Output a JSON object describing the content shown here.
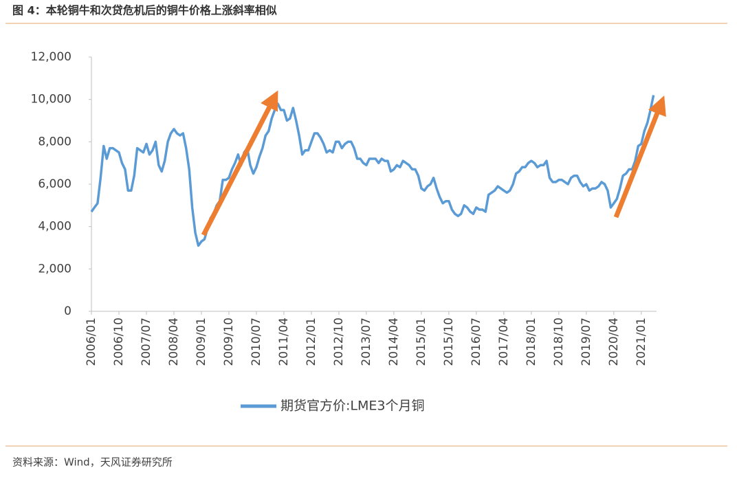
{
  "chart_data": {
    "type": "line",
    "title": "图 4：本轮铜牛和次贷危机后的铜牛价格上涨斜率相似",
    "x": [
      "2006/01",
      "2006/02",
      "2006/03",
      "2006/04",
      "2006/05",
      "2006/06",
      "2006/07",
      "2006/08",
      "2006/09",
      "2006/10",
      "2006/11",
      "2006/12",
      "2007/01",
      "2007/02",
      "2007/03",
      "2007/04",
      "2007/05",
      "2007/06",
      "2007/07",
      "2007/08",
      "2007/09",
      "2007/10",
      "2007/11",
      "2007/12",
      "2008/01",
      "2008/02",
      "2008/03",
      "2008/04",
      "2008/05",
      "2008/06",
      "2008/07",
      "2008/08",
      "2008/09",
      "2008/10",
      "2008/11",
      "2008/12",
      "2009/01",
      "2009/02",
      "2009/03",
      "2009/04",
      "2009/05",
      "2009/06",
      "2009/07",
      "2009/08",
      "2009/09",
      "2009/10",
      "2009/11",
      "2009/12",
      "2010/01",
      "2010/02",
      "2010/03",
      "2010/04",
      "2010/05",
      "2010/06",
      "2010/07",
      "2010/08",
      "2010/09",
      "2010/10",
      "2010/11",
      "2010/12",
      "2011/01",
      "2011/02",
      "2011/03",
      "2011/04",
      "2011/05",
      "2011/06",
      "2011/07",
      "2011/08",
      "2011/09",
      "2011/10",
      "2011/11",
      "2011/12",
      "2012/01",
      "2012/02",
      "2012/03",
      "2012/04",
      "2012/05",
      "2012/06",
      "2012/07",
      "2012/08",
      "2012/09",
      "2012/10",
      "2012/11",
      "2012/12",
      "2013/01",
      "2013/02",
      "2013/03",
      "2013/04",
      "2013/05",
      "2013/06",
      "2013/07",
      "2013/08",
      "2013/09",
      "2013/10",
      "2013/11",
      "2013/12",
      "2014/01",
      "2014/02",
      "2014/03",
      "2014/04",
      "2014/05",
      "2014/06",
      "2014/07",
      "2014/08",
      "2014/09",
      "2014/10",
      "2014/11",
      "2014/12",
      "2015/01",
      "2015/02",
      "2015/03",
      "2015/04",
      "2015/05",
      "2015/06",
      "2015/07",
      "2015/08",
      "2015/09",
      "2015/10",
      "2015/11",
      "2015/12",
      "2016/01",
      "2016/02",
      "2016/03",
      "2016/04",
      "2016/05",
      "2016/06",
      "2016/07",
      "2016/08",
      "2016/09",
      "2016/10",
      "2016/11",
      "2016/12",
      "2017/01",
      "2017/02",
      "2017/03",
      "2017/04",
      "2017/05",
      "2017/06",
      "2017/07",
      "2017/08",
      "2017/09",
      "2017/10",
      "2017/11",
      "2017/12",
      "2018/01",
      "2018/02",
      "2018/03",
      "2018/04",
      "2018/05",
      "2018/06",
      "2018/07",
      "2018/08",
      "2018/09",
      "2018/10",
      "2018/11",
      "2018/12",
      "2019/01",
      "2019/02",
      "2019/03",
      "2019/04",
      "2019/05",
      "2019/06",
      "2019/07",
      "2019/08",
      "2019/09",
      "2019/10",
      "2019/11",
      "2019/12",
      "2020/01",
      "2020/02",
      "2020/03",
      "2020/04",
      "2020/05",
      "2020/06",
      "2020/07",
      "2020/08",
      "2020/09",
      "2020/10",
      "2020/11",
      "2020/12",
      "2021/01",
      "2021/02",
      "2021/03",
      "2021/04",
      "2021/05"
    ],
    "series": [
      {
        "name": "期货官方价:LME3个月铜",
        "color": "#5b9bd5",
        "values": [
          4700,
          4900,
          5100,
          6300,
          7800,
          7200,
          7700,
          7700,
          7600,
          7500,
          7000,
          6700,
          5700,
          5700,
          6400,
          7700,
          7600,
          7500,
          7900,
          7400,
          7600,
          8000,
          6900,
          6600,
          7100,
          8000,
          8400,
          8600,
          8400,
          8300,
          8400,
          7700,
          6700,
          4900,
          3700,
          3100,
          3300,
          3400,
          3900,
          4400,
          4600,
          5000,
          5200,
          6200,
          6200,
          6300,
          6700,
          7000,
          7400,
          6900,
          7500,
          7700,
          6900,
          6500,
          6800,
          7300,
          7700,
          8300,
          8500,
          9100,
          9500,
          9800,
          9500,
          9500,
          9000,
          9100,
          9600,
          9000,
          8300,
          7400,
          7600,
          7600,
          8000,
          8400,
          8400,
          8200,
          7900,
          7500,
          7600,
          7500,
          8000,
          8000,
          7700,
          7900,
          8000,
          8000,
          7700,
          7200,
          7200,
          7000,
          6900,
          7200,
          7200,
          7200,
          7000,
          7200,
          7100,
          7100,
          6600,
          6700,
          6900,
          6800,
          7100,
          7000,
          6900,
          6700,
          6700,
          6400,
          5800,
          5700,
          5900,
          6000,
          6300,
          5800,
          5400,
          5100,
          5200,
          5200,
          4800,
          4600,
          4500,
          4600,
          5000,
          4900,
          4700,
          4600,
          4900,
          4800,
          4800,
          4700,
          5500,
          5600,
          5700,
          5900,
          5800,
          5700,
          5600,
          5700,
          6000,
          6500,
          6600,
          6800,
          6800,
          7000,
          7100,
          7000,
          6800,
          6900,
          6900,
          7100,
          6300,
          6100,
          6100,
          6200,
          6200,
          6100,
          6000,
          6300,
          6400,
          6400,
          6100,
          5900,
          6000,
          5700,
          5800,
          5800,
          5900,
          6100,
          6000,
          5700,
          4900,
          5100,
          5300,
          5800,
          6400,
          6500,
          6700,
          6700,
          7100,
          7800,
          7900,
          8500,
          8900,
          9500,
          10200
        ]
      }
    ],
    "xlim": [
      "2006/01",
      "2021/06"
    ],
    "xticks": [
      "2006/01",
      "2006/10",
      "2007/07",
      "2008/04",
      "2009/01",
      "2009/10",
      "2010/07",
      "2011/04",
      "2012/01",
      "2012/10",
      "2013/07",
      "2014/04",
      "2015/01",
      "2015/10",
      "2016/07",
      "2017/04",
      "2018/01",
      "2018/10",
      "2019/07",
      "2020/04",
      "2021/01"
    ],
    "ylim": [
      0,
      12000
    ],
    "yticks": [
      0,
      {
        "value": 2000,
        "label": "2,000"
      },
      {
        "value": 4000,
        "label": "4,000"
      },
      {
        "value": 6000,
        "label": "6,000"
      },
      {
        "value": 8000,
        "label": "8,000"
      },
      {
        "value": 10000,
        "label": "10,000"
      },
      {
        "value": 12000,
        "label": "12,000"
      }
    ]
  },
  "source": "资料来源：Wind，天风证券研究所"
}
